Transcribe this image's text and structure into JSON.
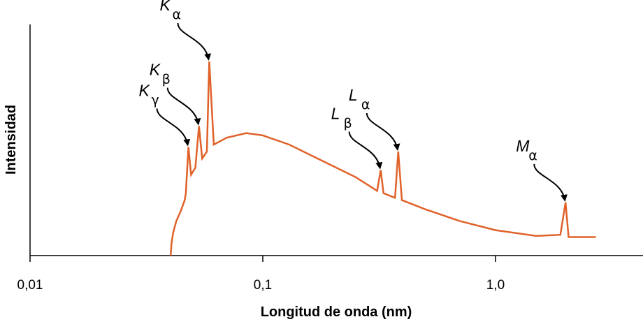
{
  "chart_data": {
    "type": "line",
    "xlabel": "Longitud de onda  (nm)",
    "ylabel": "Intensidad",
    "x_scale": "log",
    "xlim": [
      0.01,
      2.7
    ],
    "ylim": [
      0,
      1
    ],
    "x_ticks": [
      {
        "value": 0.01,
        "label": "0,01"
      },
      {
        "value": 0.1,
        "label": "0,1"
      },
      {
        "value": 1.0,
        "label": "1,0"
      }
    ],
    "series": [
      {
        "color": "#e0622a",
        "points": [
          [
            0.0402,
            0.0
          ],
          [
            0.0405,
            0.05
          ],
          [
            0.0412,
            0.1
          ],
          [
            0.0425,
            0.15
          ],
          [
            0.0443,
            0.19
          ],
          [
            0.0462,
            0.24
          ],
          [
            0.0467,
            0.27
          ],
          [
            0.0479,
            0.47
          ],
          [
            0.0492,
            0.35
          ],
          [
            0.0513,
            0.38
          ],
          [
            0.0532,
            0.56
          ],
          [
            0.0549,
            0.42
          ],
          [
            0.0575,
            0.45
          ],
          [
            0.0589,
            0.84
          ],
          [
            0.0616,
            0.48
          ],
          [
            0.07,
            0.51
          ],
          [
            0.085,
            0.53
          ],
          [
            0.1,
            0.52
          ],
          [
            0.13,
            0.48
          ],
          [
            0.18,
            0.41
          ],
          [
            0.25,
            0.34
          ],
          [
            0.31,
            0.28
          ],
          [
            0.321,
            0.37
          ],
          [
            0.33,
            0.27
          ],
          [
            0.37,
            0.25
          ],
          [
            0.382,
            0.45
          ],
          [
            0.396,
            0.24
          ],
          [
            0.5,
            0.2
          ],
          [
            0.7,
            0.15
          ],
          [
            1.0,
            0.11
          ],
          [
            1.5,
            0.085
          ],
          [
            1.9,
            0.09
          ],
          [
            2.0,
            0.23
          ],
          [
            2.06,
            0.08
          ],
          [
            2.7,
            0.08
          ]
        ]
      }
    ],
    "annotations": [
      {
        "letter": "K",
        "sub": "α",
        "x": 0.0589,
        "y": 0.84
      },
      {
        "letter": "K",
        "sub": "β",
        "x": 0.0532,
        "y": 0.56
      },
      {
        "letter": "K",
        "sub": "γ",
        "x": 0.0479,
        "y": 0.47
      },
      {
        "letter": "L",
        "sub": "β",
        "x": 0.321,
        "y": 0.37
      },
      {
        "letter": "L",
        "sub": "α",
        "x": 0.382,
        "y": 0.45
      },
      {
        "letter": "M",
        "sub": "α",
        "x": 2.0,
        "y": 0.23
      }
    ],
    "grid": false,
    "legend": "none"
  },
  "colors": {
    "curve": "#e0622a",
    "axis": "#000000"
  }
}
